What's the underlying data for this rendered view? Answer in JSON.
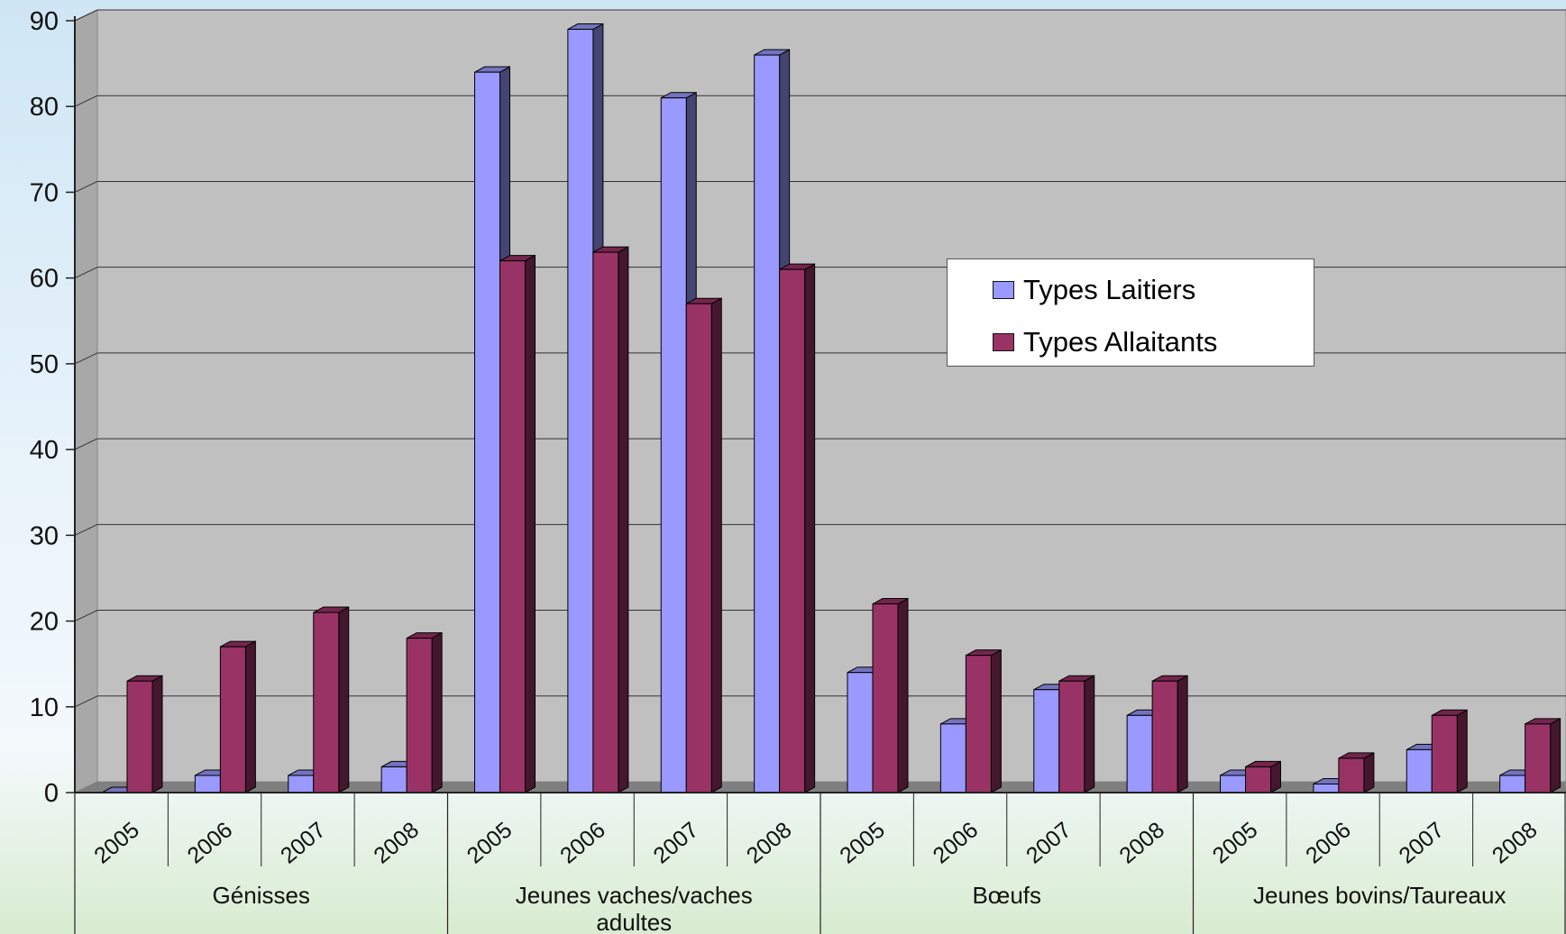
{
  "chart_data": {
    "type": "bar",
    "title": "",
    "xlabel": "",
    "ylabel": "",
    "ylim": [
      0,
      90
    ],
    "yticks": [
      0,
      10,
      20,
      30,
      40,
      50,
      60,
      70,
      80,
      90
    ],
    "groups": [
      {
        "label": "Génisses",
        "categories": [
          "2005",
          "2006",
          "2007",
          "2008"
        ]
      },
      {
        "label": "Jeunes vaches/vaches adultes",
        "categories": [
          "2005",
          "2006",
          "2007",
          "2008"
        ]
      },
      {
        "label": "Bœufs",
        "categories": [
          "2005",
          "2006",
          "2007",
          "2008"
        ]
      },
      {
        "label": "Jeunes bovins/Taureaux",
        "categories": [
          "2005",
          "2006",
          "2007",
          "2008"
        ]
      }
    ],
    "series": [
      {
        "name": "Types Laitiers",
        "color": "#9999ff",
        "values": [
          0,
          2,
          2,
          3,
          84,
          89,
          81,
          86,
          14,
          8,
          12,
          9,
          2,
          1,
          5,
          2
        ]
      },
      {
        "name": "Types Allaitants",
        "color": "#993366",
        "values": [
          13,
          17,
          21,
          18,
          62,
          63,
          57,
          61,
          22,
          16,
          13,
          13,
          3,
          4,
          9,
          8
        ]
      }
    ],
    "grid": true,
    "legend_position": "right"
  }
}
